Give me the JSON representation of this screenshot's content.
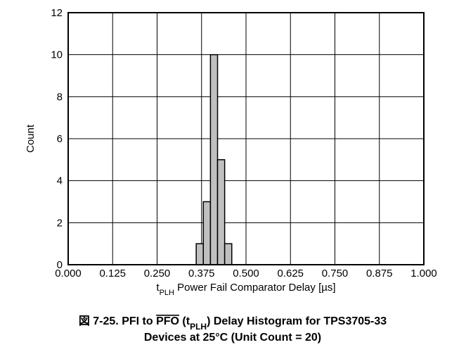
{
  "chart_data": {
    "type": "histogram",
    "bins": [
      0.36,
      0.38,
      0.4,
      0.42,
      0.44,
      0.46
    ],
    "values": [
      1,
      3,
      10,
      5,
      1
    ],
    "color": "#c0c0c0",
    "xlim": [
      0,
      1
    ],
    "ylim": [
      0,
      12
    ],
    "xticks": [
      {
        "value": 0,
        "label": "0.000"
      },
      {
        "value": 0.125,
        "label": "0.125"
      },
      {
        "value": 0.25,
        "label": "0.250"
      },
      {
        "value": 0.375,
        "label": "0.375"
      },
      {
        "value": 0.5,
        "label": "0.500"
      },
      {
        "value": 0.625,
        "label": "0.625"
      },
      {
        "value": 0.75,
        "label": "0.750"
      },
      {
        "value": 0.875,
        "label": "0.875"
      },
      {
        "value": 1,
        "label": "1.000"
      }
    ],
    "yticks": [
      0,
      2,
      4,
      6,
      8,
      10,
      12
    ],
    "grid": true,
    "ylabel": "Count",
    "xlabel": [
      "t",
      "PLH",
      " Power Fail Comparator Delay [µs]"
    ],
    "caption": [
      "図 7-25. PFI to ",
      "PFO",
      " (t",
      "PLH",
      ") Delay Histogram for TPS3705-33",
      "Devices at 25°C (Unit Count = 20)"
    ]
  }
}
